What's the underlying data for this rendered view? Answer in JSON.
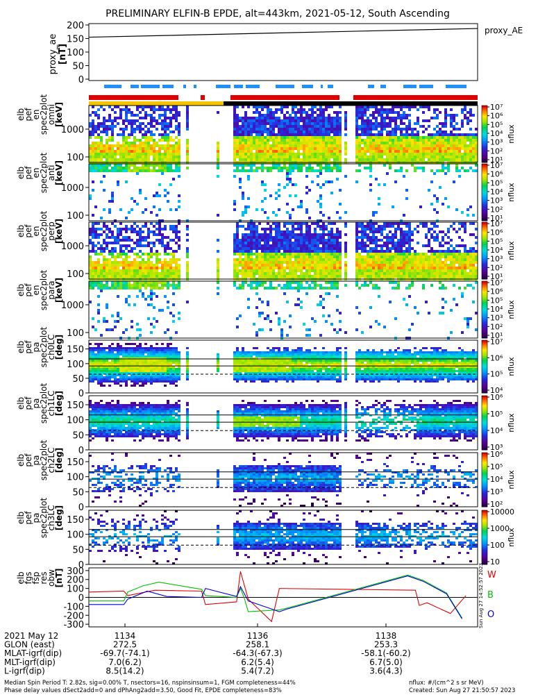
{
  "title": "PRELIMINARY ELFIN-B EPDE, alt=443km, 2021-05-12, South Ascending",
  "colors": {
    "red_bar": "#e00000",
    "blue_bar": "#1e90ff",
    "yellow_bar": "#f5c400",
    "black_bar": "#000000",
    "w_line": "#e00000",
    "b_line": "#00c000",
    "o_line": "#0000e0"
  },
  "chart_data": [
    {
      "type": "line",
      "name": "proxy_ae",
      "ylabel": "proxy_ae\n[nT]",
      "ylim": [
        0,
        200
      ],
      "yticks": [
        "200",
        "150",
        "100",
        "50",
        "0"
      ],
      "series": [
        {
          "name": "proxy_AE",
          "x": [
            0,
            1
          ],
          "values": [
            155,
            187
          ]
        }
      ],
      "legend": "proxy_AE"
    },
    {
      "type": "heatmap",
      "name": "pef_en_spec2plot_omni",
      "ylabel": [
        "elb",
        "pef",
        "en",
        "spec2plot",
        "omni",
        "[keV]"
      ],
      "yticks": [
        "1000",
        "100"
      ],
      "colorbar_ticks": [
        "10⁷",
        "10⁶",
        "10⁵",
        "10⁴",
        "10³",
        "10²",
        "10¹"
      ],
      "colorbar_label": "nflux"
    },
    {
      "type": "heatmap",
      "name": "pef_en_spec2plot_anti",
      "ylabel": [
        "elb",
        "pef",
        "en",
        "spec2plot",
        "anti",
        "[keV]"
      ],
      "yticks": [
        "1000",
        "100"
      ],
      "colorbar_ticks": [
        "10⁷",
        "10⁶",
        "10⁵",
        "10⁴",
        "10³",
        "10²",
        "10¹"
      ],
      "colorbar_label": "nflux"
    },
    {
      "type": "heatmap",
      "name": "pef_en_spec2plot_perp",
      "ylabel": [
        "elb",
        "pef",
        "en",
        "spec2plot",
        "perp",
        "[keV]"
      ],
      "yticks": [
        "1000",
        "100"
      ],
      "colorbar_ticks": [
        "10⁷",
        "10⁶",
        "10⁵",
        "10⁴",
        "10³",
        "10²",
        "10¹"
      ],
      "colorbar_label": "nflux"
    },
    {
      "type": "heatmap",
      "name": "pef_en_spec2plot_para",
      "ylabel": [
        "elb",
        "pef",
        "en",
        "spec2plot",
        "para",
        "[keV]"
      ],
      "yticks": [
        "1000",
        "100"
      ],
      "colorbar_ticks": [
        "10⁷",
        "10⁶",
        "10⁵",
        "10⁴",
        "10³",
        "10²",
        "10¹"
      ],
      "colorbar_label": "nflux"
    },
    {
      "type": "heatmap",
      "name": "pef_pa_spec2plot_ch0LC",
      "ylabel": [
        "elb",
        "pef",
        "pa",
        "spec2plot",
        "ch0LC",
        "[deg]"
      ],
      "ylim": [
        0,
        180
      ],
      "yticks": [
        "150",
        "100",
        "50",
        "0"
      ],
      "colorbar_ticks": [
        "10⁷",
        "10⁶",
        "10⁵",
        "10⁴"
      ],
      "colorbar_label": "nflux"
    },
    {
      "type": "heatmap",
      "name": "pef_pa_spec2plot_ch1LC",
      "ylabel": [
        "elb",
        "pef",
        "pa",
        "spec2plot",
        "ch1LC",
        "[deg]"
      ],
      "ylim": [
        0,
        180
      ],
      "yticks": [
        "150",
        "100",
        "50",
        "0"
      ],
      "colorbar_ticks": [
        "10⁶",
        "10⁵",
        "10⁴",
        "10³"
      ],
      "colorbar_label": "nflux"
    },
    {
      "type": "heatmap",
      "name": "pef_pa_spec2plot_ch2LC",
      "ylabel": [
        "elb",
        "pef",
        "pa",
        "spec2plot",
        "ch2LC",
        "[deg]"
      ],
      "ylim": [
        0,
        180
      ],
      "yticks": [
        "150",
        "100",
        "50",
        "0"
      ],
      "colorbar_ticks": [
        "10⁶",
        "10⁵",
        "10⁴",
        "10³",
        "10²"
      ],
      "colorbar_label": "nflux"
    },
    {
      "type": "heatmap",
      "name": "pef_pa_spec2plot_ch3LC",
      "ylabel": [
        "elb",
        "pef",
        "pa",
        "spec2plot",
        "ch3LC",
        "[deg]"
      ],
      "ylim": [
        0,
        180
      ],
      "yticks": [
        "150",
        "100",
        "50",
        "0"
      ],
      "colorbar_ticks": [
        "10000",
        "1000",
        "100",
        "10"
      ],
      "colorbar_label": "nflux"
    },
    {
      "type": "line",
      "name": "fgs_fsp_res_obw",
      "ylabel": [
        "elb",
        "fgs",
        "fsp",
        "res",
        "obw",
        "[nT]"
      ],
      "ylim": [
        -330,
        330
      ],
      "yticks": [
        "300",
        "200",
        "100",
        "0",
        "-100",
        "-200",
        "-300"
      ],
      "series": [
        {
          "name": "W",
          "values": [
            [
              0,
              60
            ],
            [
              0.09,
              70
            ],
            [
              0.1,
              20
            ],
            [
              0.17,
              80
            ],
            [
              0.29,
              70
            ],
            [
              0.3,
              -80
            ],
            [
              0.38,
              -50
            ],
            [
              0.39,
              290
            ],
            [
              0.41,
              -20
            ],
            [
              0.47,
              -270
            ],
            [
              0.49,
              100
            ],
            [
              0.84,
              80
            ],
            [
              0.85,
              -90
            ],
            [
              0.87,
              -60
            ],
            [
              0.93,
              -180
            ],
            [
              0.97,
              20
            ]
          ]
        },
        {
          "name": "B",
          "values": [
            [
              0,
              -40
            ],
            [
              0.09,
              -40
            ],
            [
              0.1,
              60
            ],
            [
              0.14,
              130
            ],
            [
              0.18,
              170
            ],
            [
              0.29,
              90
            ],
            [
              0.3,
              20
            ],
            [
              0.38,
              0
            ],
            [
              0.39,
              100
            ],
            [
              0.4,
              -10
            ],
            [
              0.41,
              -160
            ],
            [
              0.49,
              -140
            ],
            [
              0.51,
              -120
            ],
            [
              0.82,
              250
            ],
            [
              0.86,
              190
            ],
            [
              0.92,
              50
            ],
            [
              0.96,
              -230
            ]
          ]
        },
        {
          "name": "O",
          "values": [
            [
              0,
              -80
            ],
            [
              0.09,
              -80
            ],
            [
              0.1,
              -20
            ],
            [
              0.15,
              70
            ],
            [
              0.2,
              10
            ],
            [
              0.29,
              0
            ],
            [
              0.3,
              100
            ],
            [
              0.38,
              10
            ],
            [
              0.39,
              120
            ],
            [
              0.41,
              -40
            ],
            [
              0.49,
              -160
            ],
            [
              0.51,
              -130
            ],
            [
              0.82,
              240
            ],
            [
              0.86,
              180
            ],
            [
              0.92,
              40
            ],
            [
              0.96,
              -240
            ]
          ]
        }
      ],
      "legend_labels": [
        "W",
        "B",
        "O"
      ]
    }
  ],
  "x_axis": {
    "rows": [
      {
        "label": "2021 May 12",
        "values": [
          "1134",
          "1136",
          "1138"
        ]
      },
      {
        "label": "GLON (east)",
        "values": [
          "272.5",
          "258.1",
          "253.3"
        ]
      },
      {
        "label": "MLAT-igrf(dip)",
        "values": [
          "-69.7(-74.1)",
          "-64.3(-67.3)",
          "-58.1(-60.2)"
        ]
      },
      {
        "label": "MLT-igrf(dip)",
        "values": [
          "7.0(6.2)",
          "6.2(5.4)",
          "6.7(5.0)"
        ]
      },
      {
        "label": "L-igrf(dip)",
        "values": [
          "8.5(14.2)",
          "5.4(7.2)",
          "3.6(4.3)"
        ]
      }
    ]
  },
  "footer": {
    "line1": "Median Spin Period T: 2.82s, sig=0.00% T, nsectors=16, nspinsinsum=1, FGM completeness=44%",
    "line2": "Phase delay values dSect2add=0 and dPhAng2add=3.50, Good Fit, EPDE completeness=83%",
    "nflux_units": "nflux: #/(cm^2 s sr MeV)",
    "created": "Created: Sun Aug 27 21:50:57 2023",
    "side_stamp": "Sun Aug 27 14:52:57 2023"
  }
}
